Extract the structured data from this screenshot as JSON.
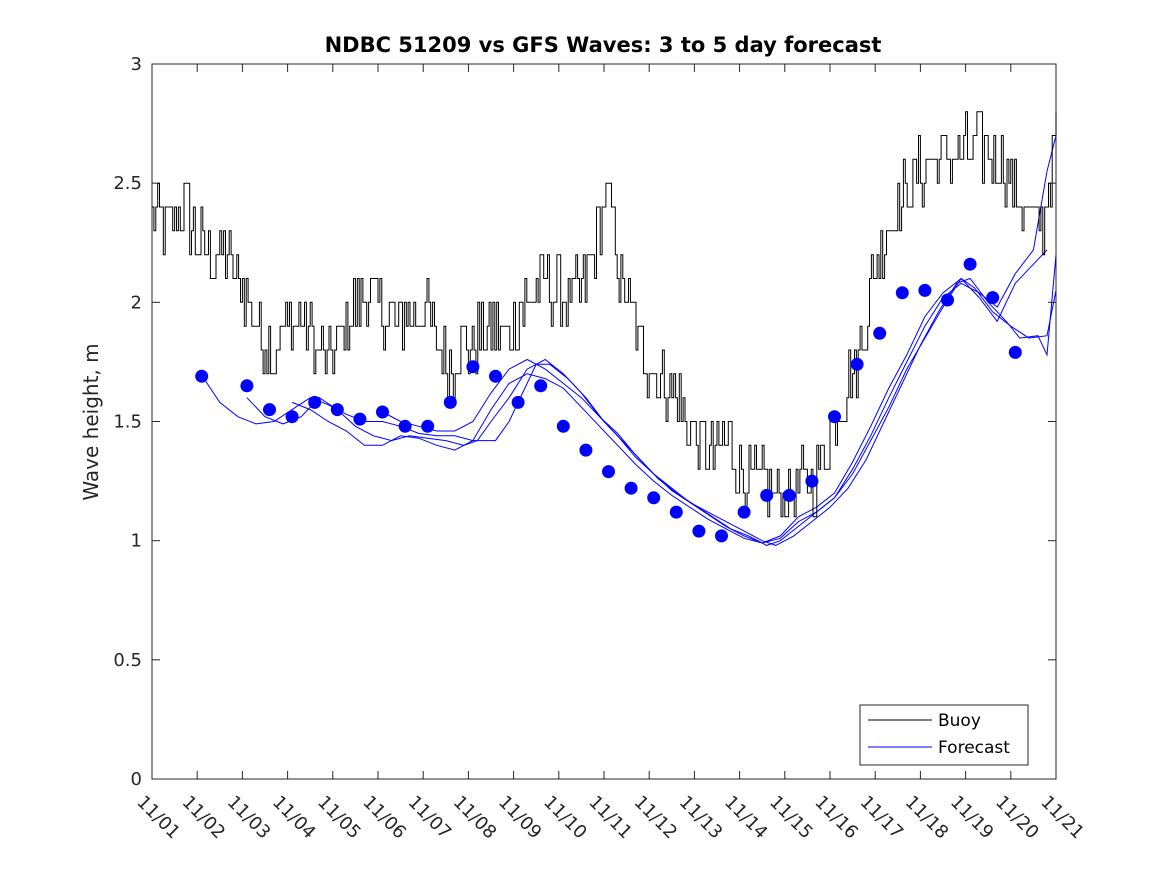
{
  "chart_data": {
    "type": "line",
    "title": "NDBC 51209 vs GFS Waves: 3 to 5 day forecast",
    "xlabel": "",
    "ylabel": "Wave height, m",
    "xlim": [
      0,
      20
    ],
    "ylim": [
      0,
      3
    ],
    "x_tick_labels": [
      "11/01",
      "11/02",
      "11/03",
      "11/04",
      "11/05",
      "11/06",
      "11/07",
      "11/08",
      "11/09",
      "11/10",
      "11/11",
      "11/12",
      "11/13",
      "11/14",
      "11/15",
      "11/16",
      "11/17",
      "11/18",
      "11/19",
      "11/20",
      "11/21"
    ],
    "y_ticks": [
      0,
      0.5,
      1,
      1.5,
      2,
      2.5,
      3
    ],
    "y_tick_labels": [
      "0",
      "0.5",
      "1",
      "1.5",
      "2",
      "2.5",
      "3"
    ],
    "legend": {
      "position": "bottom-right",
      "entries": [
        {
          "label": "Buoy",
          "color": "#000000"
        },
        {
          "label": "Forecast",
          "color": "#0000ff"
        }
      ]
    },
    "series": [
      {
        "name": "Buoy",
        "color": "#000000",
        "step_hours": 1,
        "x_start": 0,
        "anchors": [
          [
            0.0,
            2.35
          ],
          [
            0.4,
            2.3
          ],
          [
            0.7,
            2.4
          ],
          [
            1.0,
            2.25
          ],
          [
            1.3,
            2.2
          ],
          [
            1.6,
            2.2
          ],
          [
            1.9,
            2.1
          ],
          [
            2.1,
            2.0
          ],
          [
            2.4,
            1.85
          ],
          [
            2.7,
            1.8
          ],
          [
            3.0,
            1.9
          ],
          [
            3.3,
            1.95
          ],
          [
            3.6,
            1.8
          ],
          [
            3.9,
            1.75
          ],
          [
            4.2,
            1.85
          ],
          [
            4.5,
            2.0
          ],
          [
            4.8,
            2.05
          ],
          [
            5.1,
            1.95
          ],
          [
            5.4,
            1.9
          ],
          [
            5.7,
            1.95
          ],
          [
            6.0,
            2.0
          ],
          [
            6.3,
            1.8
          ],
          [
            6.6,
            1.75
          ],
          [
            6.9,
            1.8
          ],
          [
            7.2,
            1.85
          ],
          [
            7.5,
            1.9
          ],
          [
            7.8,
            1.85
          ],
          [
            8.1,
            1.95
          ],
          [
            8.4,
            2.05
          ],
          [
            8.7,
            2.1
          ],
          [
            9.0,
            2.05
          ],
          [
            9.3,
            2.0
          ],
          [
            9.6,
            2.1
          ],
          [
            9.85,
            2.25
          ],
          [
            10.0,
            2.45
          ],
          [
            10.15,
            2.4
          ],
          [
            10.35,
            2.1
          ],
          [
            10.6,
            1.95
          ],
          [
            10.9,
            1.75
          ],
          [
            11.2,
            1.7
          ],
          [
            11.5,
            1.65
          ],
          [
            11.8,
            1.5
          ],
          [
            12.1,
            1.4
          ],
          [
            12.4,
            1.35
          ],
          [
            12.7,
            1.45
          ],
          [
            13.0,
            1.3
          ],
          [
            13.3,
            1.25
          ],
          [
            13.6,
            1.2
          ],
          [
            13.9,
            1.2
          ],
          [
            14.2,
            1.2
          ],
          [
            14.5,
            1.25
          ],
          [
            14.8,
            1.3
          ],
          [
            15.0,
            1.45
          ],
          [
            15.3,
            1.6
          ],
          [
            15.6,
            1.75
          ],
          [
            15.9,
            2.05
          ],
          [
            16.2,
            2.3
          ],
          [
            16.5,
            2.4
          ],
          [
            16.8,
            2.5
          ],
          [
            17.1,
            2.55
          ],
          [
            17.4,
            2.6
          ],
          [
            17.7,
            2.6
          ],
          [
            18.0,
            2.65
          ],
          [
            18.3,
            2.65
          ],
          [
            18.6,
            2.6
          ],
          [
            18.9,
            2.55
          ],
          [
            19.2,
            2.45
          ],
          [
            19.5,
            2.3
          ],
          [
            19.7,
            2.35
          ],
          [
            19.9,
            2.55
          ],
          [
            20.0,
            2.75
          ]
        ],
        "noise_amplitude": 0.07
      },
      {
        "name": "Forecast",
        "color": "#0000ff",
        "runs": [
          [
            [
              1.15,
              1.68
            ],
            [
              1.5,
              1.58
            ],
            [
              1.9,
              1.52
            ],
            [
              2.3,
              1.49
            ],
            [
              2.7,
              1.5
            ],
            [
              3.1,
              1.55
            ],
            [
              3.5,
              1.6
            ],
            [
              3.9,
              1.57
            ],
            [
              4.3,
              1.53
            ],
            [
              4.7,
              1.5
            ],
            [
              5.1,
              1.5
            ],
            [
              5.5,
              1.48
            ],
            [
              5.9,
              1.45
            ],
            [
              6.3,
              1.44
            ],
            [
              6.7,
              1.44
            ],
            [
              7.1,
              1.42
            ],
            [
              7.6,
              1.42
            ],
            [
              7.9,
              1.5
            ],
            [
              8.2,
              1.62
            ],
            [
              8.5,
              1.74
            ],
            [
              8.8,
              1.74
            ],
            [
              9.2,
              1.68
            ],
            [
              9.6,
              1.6
            ],
            [
              10.0,
              1.5
            ],
            [
              10.4,
              1.42
            ],
            [
              10.8,
              1.34
            ],
            [
              11.2,
              1.26
            ],
            [
              11.6,
              1.2
            ],
            [
              12.0,
              1.15
            ],
            [
              12.4,
              1.1
            ],
            [
              12.8,
              1.05
            ],
            [
              13.2,
              1.02
            ],
            [
              13.6,
              0.98
            ],
            [
              13.9,
              1.0
            ],
            [
              14.3,
              1.06
            ],
            [
              14.7,
              1.12
            ],
            [
              15.1,
              1.18
            ],
            [
              15.5,
              1.28
            ],
            [
              15.9,
              1.42
            ],
            [
              16.3,
              1.56
            ],
            [
              16.7,
              1.72
            ],
            [
              17.1,
              1.85
            ],
            [
              17.5,
              1.98
            ],
            [
              17.9,
              2.1
            ],
            [
              18.2,
              2.06
            ],
            [
              18.6,
              1.96
            ],
            [
              19.0,
              1.9
            ],
            [
              19.4,
              1.85
            ],
            [
              19.8,
              1.86
            ],
            [
              20.0,
              2.05
            ]
          ],
          [
            [
              2.1,
              1.6
            ],
            [
              2.5,
              1.52
            ],
            [
              2.9,
              1.49
            ],
            [
              3.3,
              1.52
            ],
            [
              3.7,
              1.6
            ],
            [
              4.1,
              1.55
            ],
            [
              4.5,
              1.48
            ],
            [
              4.9,
              1.44
            ],
            [
              5.3,
              1.42
            ],
            [
              5.7,
              1.44
            ],
            [
              6.1,
              1.43
            ],
            [
              6.5,
              1.42
            ],
            [
              6.9,
              1.4
            ],
            [
              7.2,
              1.42
            ],
            [
              7.5,
              1.5
            ],
            [
              7.9,
              1.6
            ],
            [
              8.3,
              1.72
            ],
            [
              8.7,
              1.76
            ],
            [
              9.1,
              1.7
            ],
            [
              9.5,
              1.62
            ],
            [
              9.9,
              1.52
            ],
            [
              10.3,
              1.45
            ],
            [
              10.7,
              1.36
            ],
            [
              11.1,
              1.28
            ],
            [
              11.5,
              1.22
            ],
            [
              11.9,
              1.16
            ],
            [
              12.3,
              1.12
            ],
            [
              12.7,
              1.08
            ],
            [
              13.1,
              1.04
            ],
            [
              13.5,
              1.0
            ],
            [
              13.8,
              0.98
            ],
            [
              14.2,
              1.02
            ],
            [
              14.6,
              1.08
            ],
            [
              15.0,
              1.14
            ],
            [
              15.4,
              1.22
            ],
            [
              15.8,
              1.34
            ],
            [
              16.2,
              1.5
            ],
            [
              16.6,
              1.66
            ],
            [
              17.0,
              1.82
            ],
            [
              17.4,
              1.96
            ],
            [
              17.8,
              2.08
            ],
            [
              18.1,
              2.1
            ],
            [
              18.5,
              2.0
            ],
            [
              18.9,
              1.92
            ],
            [
              19.2,
              1.85
            ],
            [
              19.6,
              1.86
            ],
            [
              19.8,
              1.78
            ],
            [
              20.0,
              2.2
            ]
          ],
          [
            [
              3.1,
              1.58
            ],
            [
              3.5,
              1.55
            ],
            [
              3.9,
              1.5
            ],
            [
              4.3,
              1.46
            ],
            [
              4.7,
              1.4
            ],
            [
              5.1,
              1.4
            ],
            [
              5.5,
              1.44
            ],
            [
              5.9,
              1.43
            ],
            [
              6.3,
              1.4
            ],
            [
              6.7,
              1.38
            ],
            [
              7.1,
              1.42
            ],
            [
              7.5,
              1.55
            ],
            [
              7.9,
              1.66
            ],
            [
              8.3,
              1.7
            ],
            [
              8.7,
              1.68
            ],
            [
              9.1,
              1.64
            ],
            [
              9.5,
              1.56
            ],
            [
              9.9,
              1.48
            ],
            [
              10.3,
              1.4
            ],
            [
              10.7,
              1.32
            ],
            [
              11.1,
              1.25
            ],
            [
              11.5,
              1.19
            ],
            [
              11.9,
              1.14
            ],
            [
              12.3,
              1.09
            ],
            [
              12.7,
              1.05
            ],
            [
              13.1,
              1.01
            ],
            [
              13.5,
              0.99
            ],
            [
              13.9,
              1.01
            ],
            [
              14.3,
              1.08
            ],
            [
              14.7,
              1.12
            ],
            [
              15.1,
              1.18
            ],
            [
              15.5,
              1.3
            ],
            [
              15.9,
              1.44
            ],
            [
              16.3,
              1.6
            ],
            [
              16.7,
              1.75
            ],
            [
              17.1,
              1.9
            ],
            [
              17.5,
              2.02
            ],
            [
              17.9,
              2.08
            ],
            [
              18.3,
              2.04
            ],
            [
              18.7,
              1.98
            ],
            [
              19.1,
              2.12
            ],
            [
              19.5,
              2.22
            ],
            [
              19.8,
              2.55
            ],
            [
              20.0,
              2.7
            ]
          ],
          [
            [
              5.1,
              1.54
            ],
            [
              5.5,
              1.5
            ],
            [
              5.9,
              1.48
            ],
            [
              6.3,
              1.46
            ],
            [
              6.7,
              1.46
            ],
            [
              7.1,
              1.5
            ],
            [
              7.5,
              1.62
            ],
            [
              7.9,
              1.72
            ],
            [
              8.3,
              1.76
            ],
            [
              8.7,
              1.72
            ],
            [
              9.1,
              1.66
            ],
            [
              9.5,
              1.6
            ],
            [
              9.9,
              1.52
            ],
            [
              10.3,
              1.44
            ],
            [
              10.7,
              1.35
            ],
            [
              11.1,
              1.28
            ],
            [
              11.5,
              1.21
            ],
            [
              11.9,
              1.16
            ],
            [
              12.3,
              1.11
            ],
            [
              12.7,
              1.06
            ],
            [
              13.1,
              1.02
            ],
            [
              13.5,
              0.99
            ],
            [
              13.9,
              1.02
            ],
            [
              14.3,
              1.1
            ],
            [
              14.7,
              1.14
            ],
            [
              15.1,
              1.2
            ],
            [
              15.5,
              1.33
            ],
            [
              15.9,
              1.48
            ],
            [
              16.3,
              1.64
            ],
            [
              16.7,
              1.78
            ],
            [
              17.1,
              1.94
            ],
            [
              17.5,
              2.04
            ],
            [
              17.9,
              2.1
            ],
            [
              18.3,
              2.02
            ],
            [
              18.7,
              1.92
            ],
            [
              19.1,
              2.08
            ],
            [
              19.5,
              2.16
            ],
            [
              19.8,
              2.22
            ]
          ]
        ],
        "markers": [
          [
            1.1,
            1.69
          ],
          [
            2.1,
            1.65
          ],
          [
            2.6,
            1.55
          ],
          [
            3.1,
            1.52
          ],
          [
            3.6,
            1.58
          ],
          [
            4.1,
            1.55
          ],
          [
            4.6,
            1.51
          ],
          [
            5.1,
            1.54
          ],
          [
            5.6,
            1.48
          ],
          [
            6.1,
            1.48
          ],
          [
            6.6,
            1.58
          ],
          [
            7.1,
            1.73
          ],
          [
            7.6,
            1.69
          ],
          [
            8.1,
            1.58
          ],
          [
            8.6,
            1.65
          ],
          [
            9.1,
            1.48
          ],
          [
            9.6,
            1.38
          ],
          [
            10.1,
            1.29
          ],
          [
            10.6,
            1.22
          ],
          [
            11.1,
            1.18
          ],
          [
            11.6,
            1.12
          ],
          [
            12.1,
            1.04
          ],
          [
            12.6,
            1.02
          ],
          [
            13.1,
            1.12
          ],
          [
            13.6,
            1.19
          ],
          [
            14.1,
            1.19
          ],
          [
            14.6,
            1.25
          ],
          [
            15.1,
            1.52
          ],
          [
            15.6,
            1.74
          ],
          [
            16.1,
            1.87
          ],
          [
            16.6,
            2.04
          ],
          [
            17.1,
            2.05
          ],
          [
            17.6,
            2.01
          ],
          [
            18.1,
            2.16
          ],
          [
            18.6,
            2.02
          ],
          [
            19.1,
            1.79
          ]
        ]
      }
    ]
  }
}
